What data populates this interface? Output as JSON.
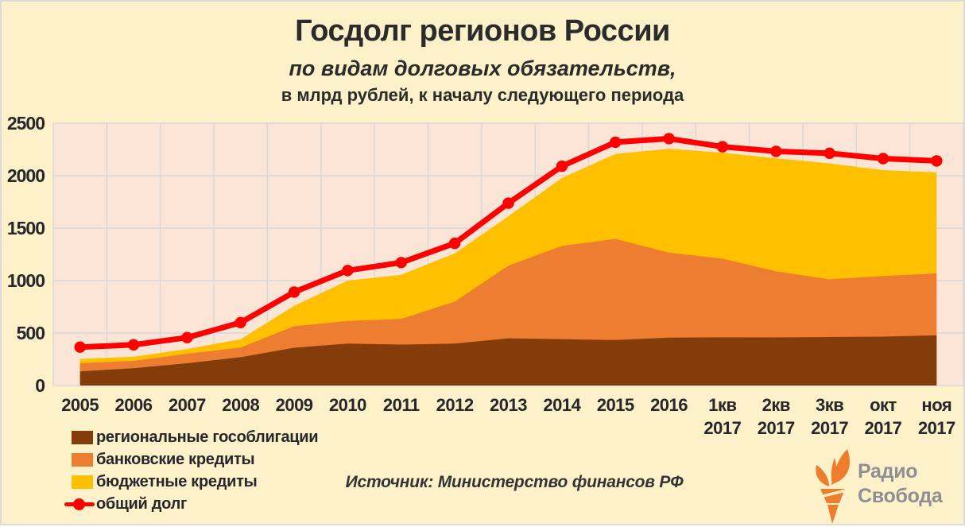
{
  "page": {
    "title": "Госдолг регионов России",
    "subtitle": "по видам долговых обязательств,",
    "subtitle2": "в млрд рублей, к началу следующего периода",
    "source": "Источник: Министерство финансов РФ",
    "logo": {
      "line1": "Радио",
      "line2": "Свобода"
    }
  },
  "colors": {
    "page_bg": "#FDF1CA",
    "plot_bg": "#FBE5D6",
    "grid": "#D8D8D8",
    "bonds": "#843C0B",
    "bank": "#ED7D31",
    "budget": "#FFC000",
    "total_line": "#FF0000",
    "text": "#26262B",
    "logo_orange": "#EE7E2E",
    "logo_gray": "#8F8F93"
  },
  "chart_data": {
    "type": "area",
    "stacked": true,
    "title": "Госдолг регионов России",
    "subtitle": "по видам долговых обязательств, в млрд рублей, к началу следующего периода",
    "unit": "млрд рублей",
    "grid": true,
    "legend_position": "bottom-left",
    "ylim": [
      0,
      2500
    ],
    "y_ticks": [
      0,
      500,
      1000,
      1500,
      2000,
      2500
    ],
    "categories": [
      "2005",
      "2006",
      "2007",
      "2008",
      "2009",
      "2010",
      "2011",
      "2012",
      "2013",
      "2014",
      "2015",
      "2016",
      "1кв 2017",
      "2кв 2017",
      "3кв 2017",
      "окт 2017",
      "ноя 2017"
    ],
    "category_labels": [
      [
        "2005"
      ],
      [
        "2006"
      ],
      [
        "2007"
      ],
      [
        "2008"
      ],
      [
        "2009"
      ],
      [
        "2010"
      ],
      [
        "2011"
      ],
      [
        "2012"
      ],
      [
        "2013"
      ],
      [
        "2014"
      ],
      [
        "2015"
      ],
      [
        "2016"
      ],
      [
        "1кв",
        "2017"
      ],
      [
        "2кв",
        "2017"
      ],
      [
        "3кв",
        "2017"
      ],
      [
        "окт",
        "2017"
      ],
      [
        "ноя",
        "2017"
      ]
    ],
    "series": [
      {
        "name": "региональные гособлигации",
        "type": "area",
        "color": "#843C0B",
        "values": [
          135,
          165,
          212,
          270,
          360,
          400,
          390,
          400,
          450,
          442,
          433,
          457,
          459,
          458,
          462,
          466,
          478
        ]
      },
      {
        "name": "банковские кредиты",
        "type": "area",
        "color": "#ED7D31",
        "values": [
          78,
          70,
          90,
          92,
          205,
          215,
          245,
          400,
          692,
          888,
          965,
          809,
          750,
          630,
          550,
          577,
          590
        ]
      },
      {
        "name": "бюджетные кредиты",
        "type": "area",
        "color": "#FFC000",
        "values": [
          40,
          40,
          46,
          80,
          195,
          385,
          420,
          460,
          471,
          648,
          809,
          991,
          1010,
          1078,
          1105,
          1010,
          963
        ]
      },
      {
        "name": "общий долг",
        "type": "line",
        "color": "#FF0000",
        "values": [
          366,
          388,
          457,
          600,
          891,
          1096,
          1172,
          1355,
          1738,
          2090,
          2319,
          2353,
          2276,
          2232,
          2214,
          2163,
          2141
        ]
      }
    ]
  }
}
